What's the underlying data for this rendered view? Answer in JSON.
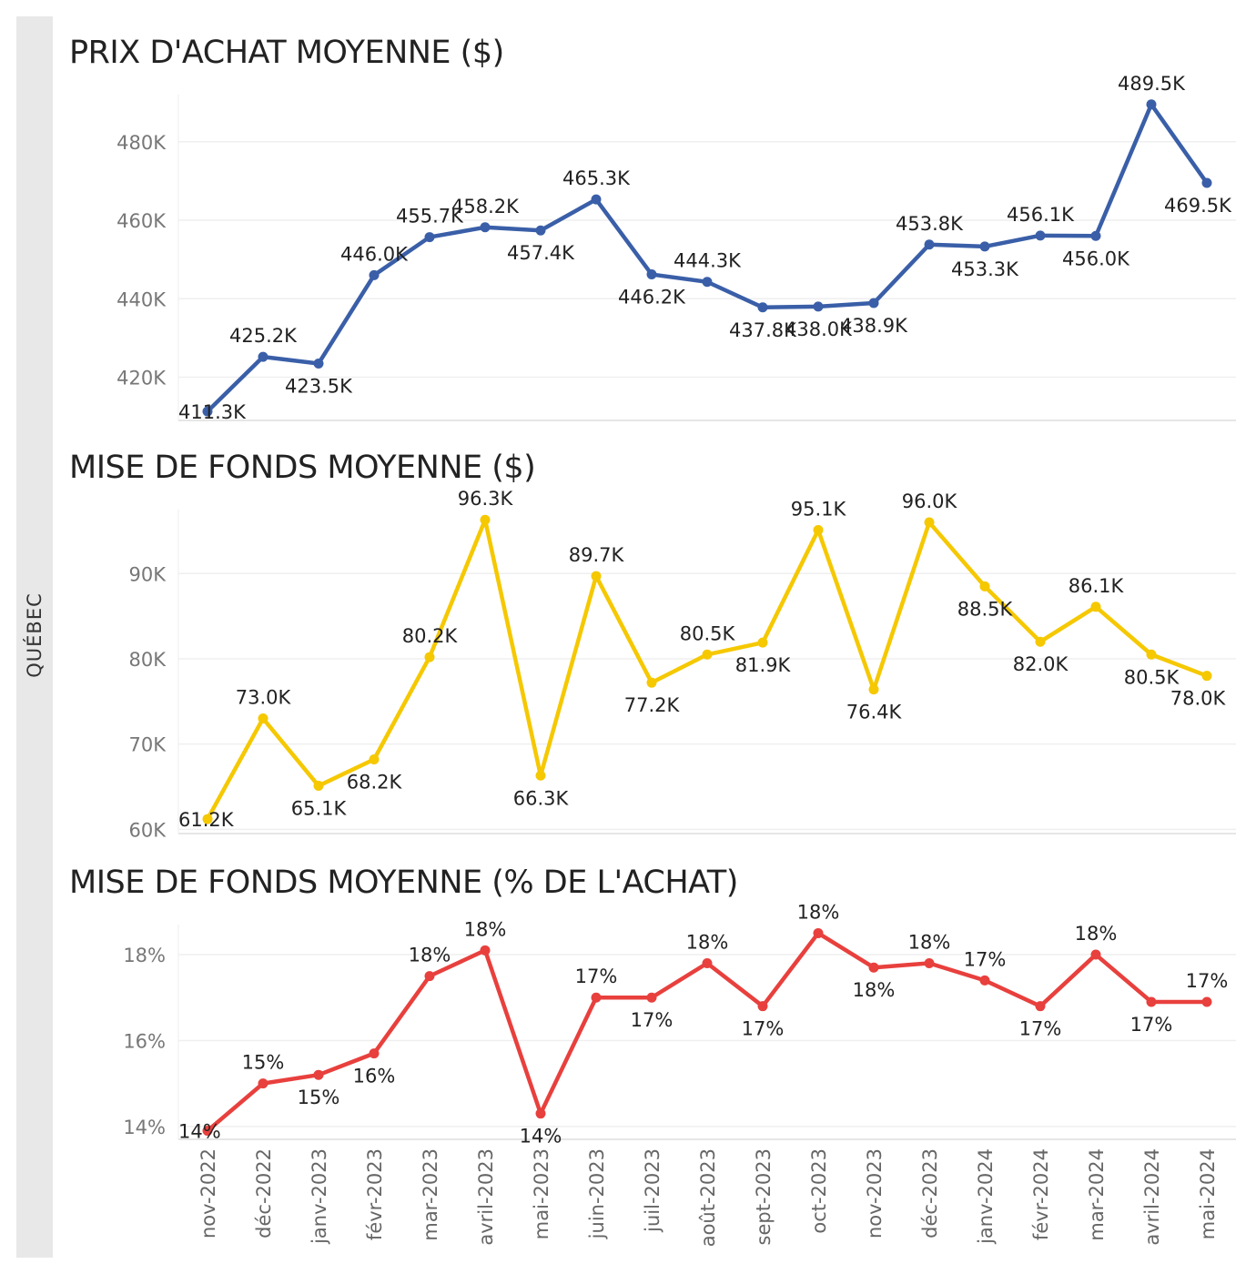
{
  "side_label": "QUÉBEC",
  "chart_data": [
    {
      "type": "line",
      "title": "PRIX D'ACHAT MOYENNE ($)",
      "color": "#3a5fa8",
      "categories": [
        "nov-2022",
        "déc-2022",
        "janv-2023",
        "févr-2023",
        "mar-2023",
        "avril-2023",
        "mai-2023",
        "juin-2023",
        "juil-2023",
        "août-2023",
        "sept-2023",
        "oct-2023",
        "nov-2023",
        "déc-2023",
        "janv-2024",
        "févr-2024",
        "mar-2024",
        "avril-2024",
        "mai-2024"
      ],
      "values": [
        411.3,
        425.2,
        423.5,
        446.0,
        455.7,
        458.2,
        457.4,
        465.3,
        446.2,
        444.3,
        437.8,
        438.0,
        438.9,
        453.8,
        453.3,
        456.1,
        456.0,
        489.5,
        469.5
      ],
      "data_labels": [
        "411.3K",
        "425.2K",
        "423.5K",
        "446.0K",
        "455.7K",
        "458.2K",
        "457.4K",
        "465.3K",
        "446.2K",
        "444.3K",
        "437.8K",
        "438.0K",
        "438.9K",
        "453.8K",
        "453.3K",
        "456.1K",
        "456.0K",
        "489.5K",
        "469.5K"
      ],
      "ylim": [
        409,
        492
      ],
      "yticks": [
        420,
        440,
        460,
        480
      ],
      "ytick_labels": [
        "420K",
        "440K",
        "460K",
        "480K"
      ],
      "grid": true
    },
    {
      "type": "line",
      "title": "MISE DE FONDS MOYENNE ($)",
      "color": "#f5c800",
      "categories": [
        "nov-2022",
        "déc-2022",
        "janv-2023",
        "févr-2023",
        "mar-2023",
        "avril-2023",
        "mai-2023",
        "juin-2023",
        "juil-2023",
        "août-2023",
        "sept-2023",
        "oct-2023",
        "nov-2023",
        "déc-2023",
        "janv-2024",
        "févr-2024",
        "mar-2024",
        "avril-2024",
        "mai-2024"
      ],
      "values": [
        61.2,
        73.0,
        65.1,
        68.2,
        80.2,
        96.3,
        66.3,
        89.7,
        77.2,
        80.5,
        81.9,
        95.1,
        76.4,
        96.0,
        88.5,
        82.0,
        86.1,
        80.5,
        78.0
      ],
      "data_labels": [
        "61.2K",
        "73.0K",
        "65.1K",
        "68.2K",
        "80.2K",
        "96.3K",
        "66.3K",
        "89.7K",
        "77.2K",
        "80.5K",
        "81.9K",
        "95.1K",
        "76.4K",
        "96.0K",
        "88.5K",
        "82.0K",
        "86.1K",
        "80.5K",
        "78.0K"
      ],
      "ylim": [
        59.5,
        97.5
      ],
      "yticks": [
        60,
        70,
        80,
        90
      ],
      "ytick_labels": [
        "60K",
        "70K",
        "80K",
        "90K"
      ],
      "grid": true
    },
    {
      "type": "line",
      "title": "MISE DE FONDS MOYENNE (% DE L'ACHAT)",
      "color": "#e8403d",
      "categories": [
        "nov-2022",
        "déc-2022",
        "janv-2023",
        "févr-2023",
        "mar-2023",
        "avril-2023",
        "mai-2023",
        "juin-2023",
        "juil-2023",
        "août-2023",
        "sept-2023",
        "oct-2023",
        "nov-2023",
        "déc-2023",
        "janv-2024",
        "févr-2024",
        "mar-2024",
        "avril-2024",
        "mai-2024"
      ],
      "values": [
        13.9,
        15.0,
        15.2,
        15.7,
        17.5,
        18.1,
        14.3,
        17.0,
        17.0,
        17.8,
        16.8,
        18.5,
        17.7,
        17.8,
        17.4,
        16.8,
        18.0,
        16.9,
        16.9
      ],
      "data_labels": [
        "14%",
        "15%",
        "15%",
        "16%",
        "18%",
        "18%",
        "14%",
        "17%",
        "17%",
        "18%",
        "17%",
        "18%",
        "18%",
        "18%",
        "17%",
        "17%",
        "18%",
        "17%",
        "17%"
      ],
      "ylim": [
        13.7,
        18.7
      ],
      "yticks": [
        14,
        16,
        18
      ],
      "ytick_labels": [
        "14%",
        "16%",
        "18%"
      ],
      "grid": true
    }
  ]
}
